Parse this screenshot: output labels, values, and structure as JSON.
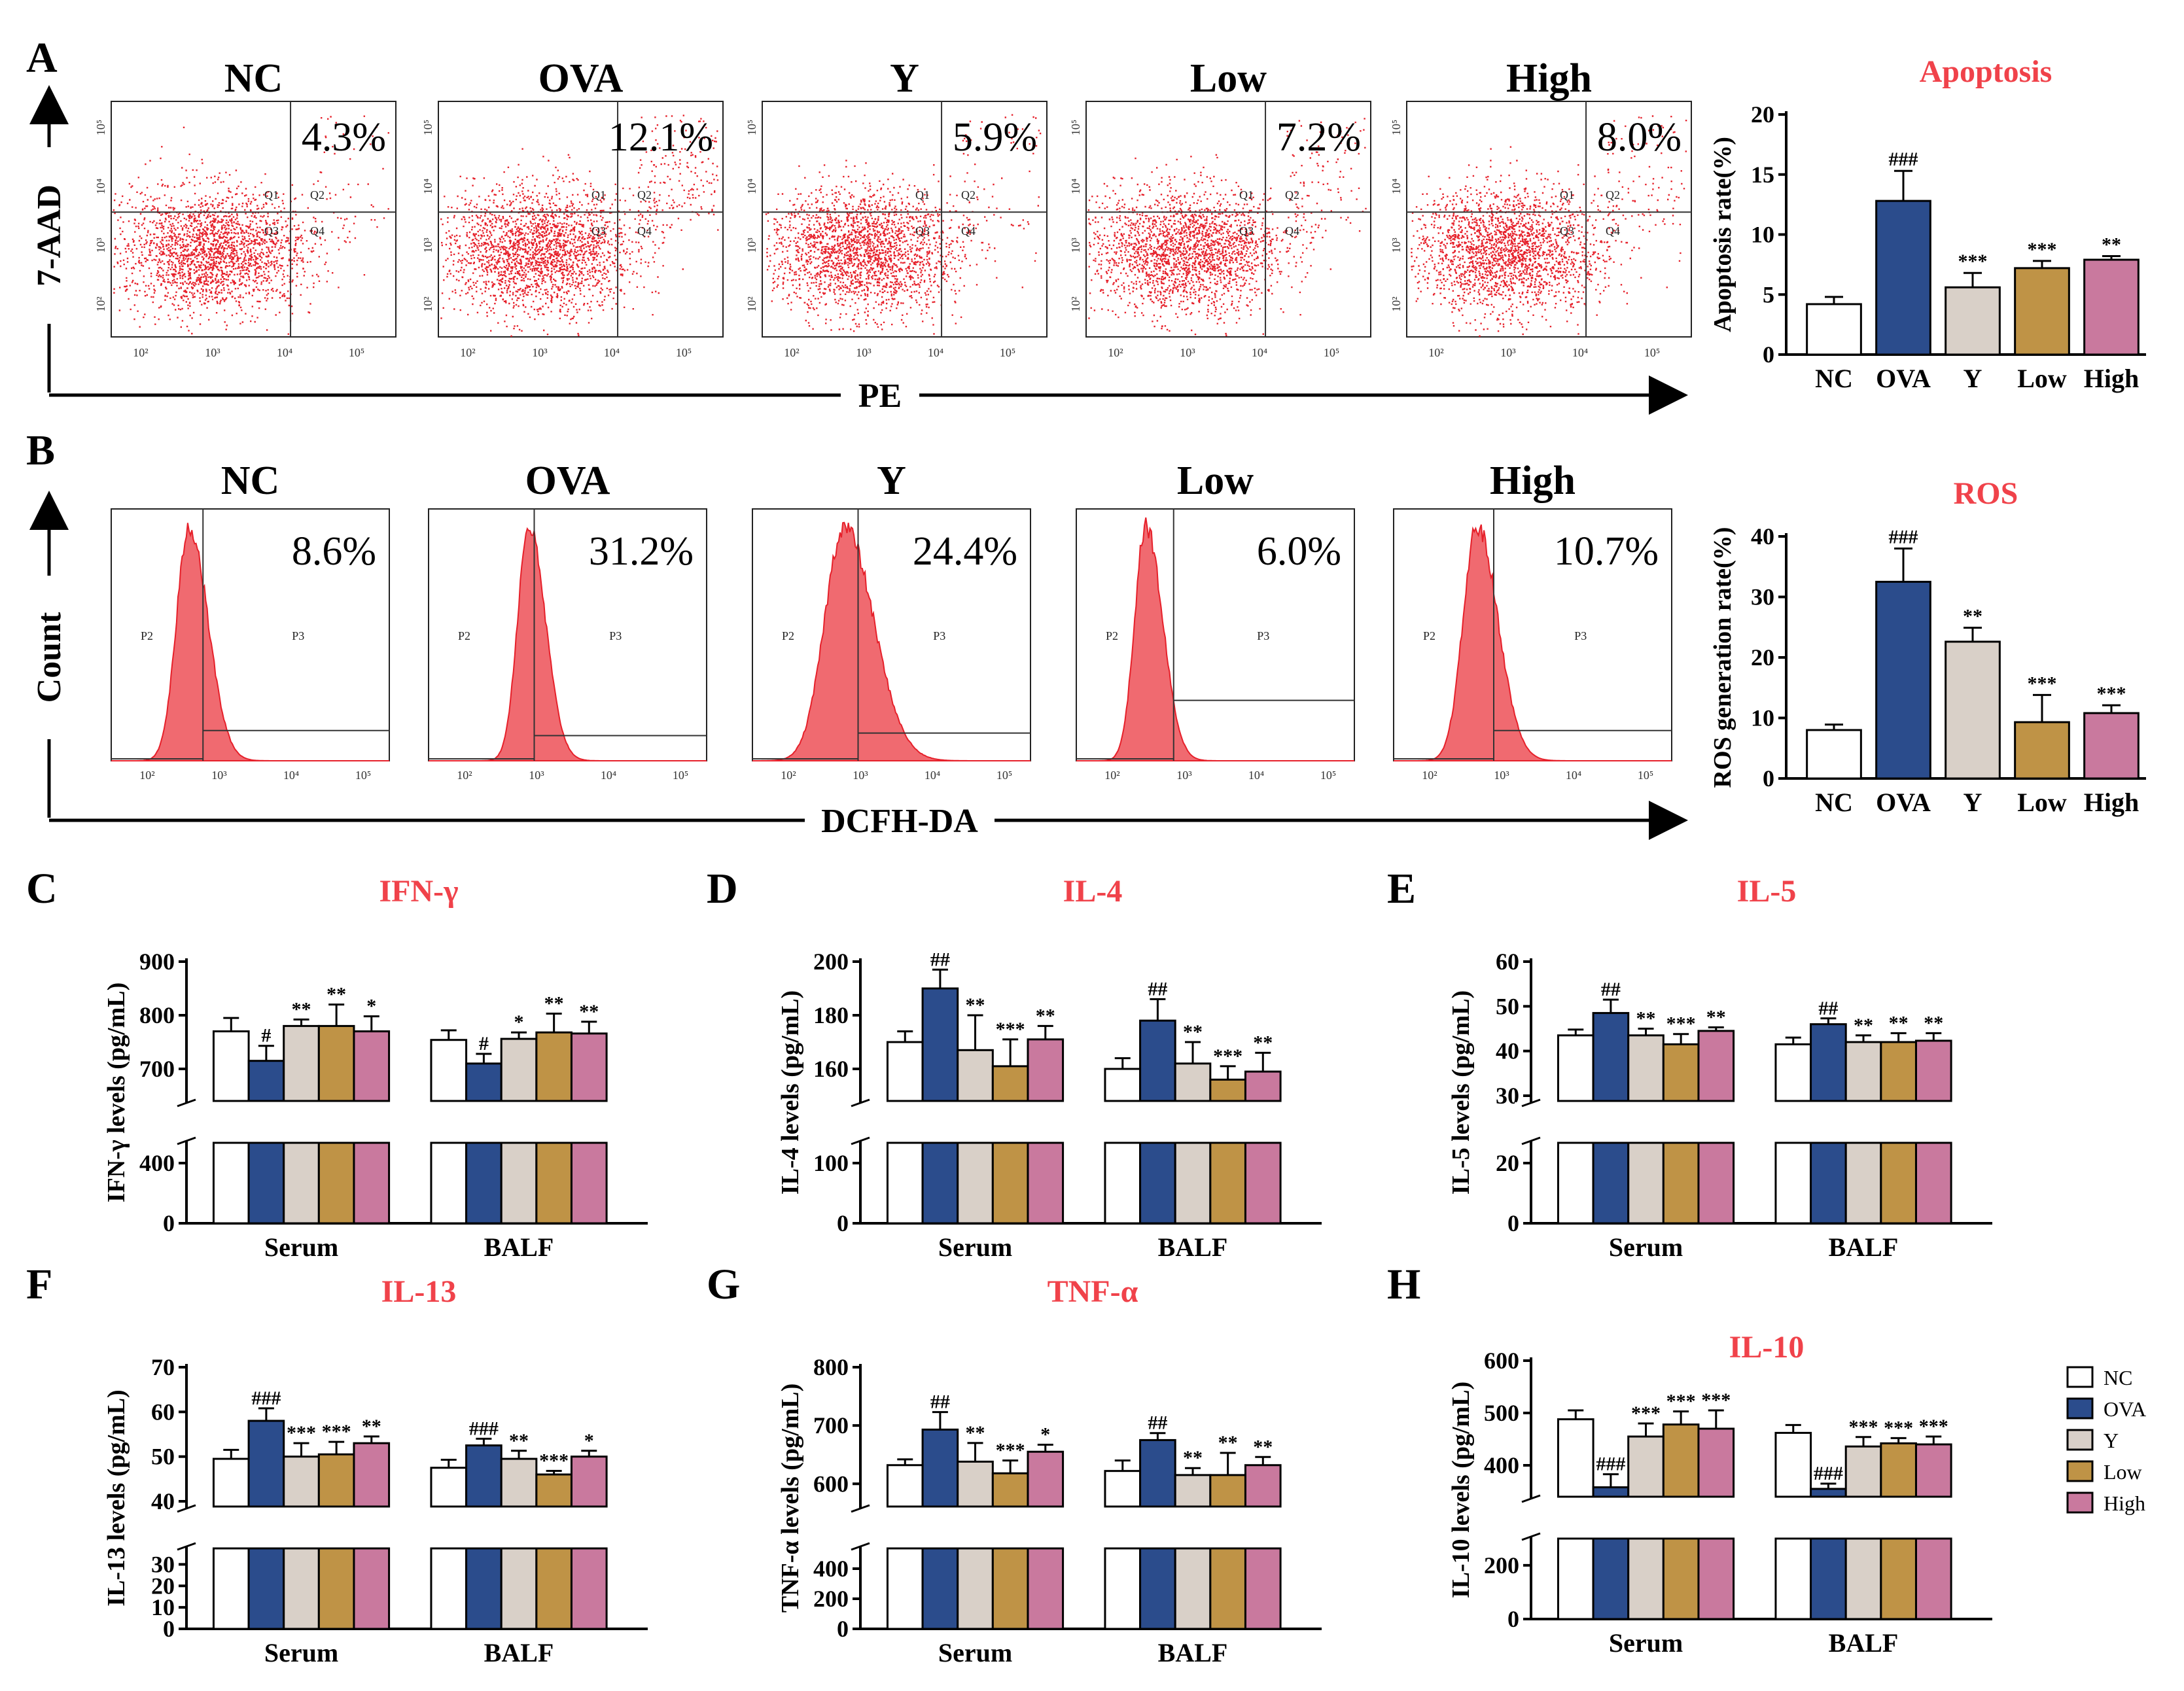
{
  "panel_labels": [
    "A",
    "B",
    "C",
    "D",
    "E",
    "F",
    "G",
    "H"
  ],
  "colors": {
    "NC": "#ffffff",
    "OVA": "#2b4c8c",
    "Y": "#d9d0c8",
    "Low": "#bf9346",
    "High": "#c9799e",
    "title": "#f0424a",
    "flow": "#e6202a"
  },
  "flow_A": {
    "x_axis_label": "PE",
    "y_axis_label": "7-AAD",
    "quadrant_labels": [
      "Q1",
      "Q2",
      "Q3",
      "Q4"
    ],
    "tick_labels": [
      "10²",
      "10³",
      "10⁴",
      "10⁵"
    ],
    "groups": [
      {
        "name": "NC",
        "percent": "4.3%"
      },
      {
        "name": "OVA",
        "percent": "12.1%"
      },
      {
        "name": "Y",
        "percent": "5.9%"
      },
      {
        "name": "Low",
        "percent": "7.2%"
      },
      {
        "name": "High",
        "percent": "8.0%"
      }
    ]
  },
  "flow_B": {
    "x_axis_label": "DCFH-DA",
    "y_axis_label": "Count",
    "gate_labels": [
      "P2",
      "P3"
    ],
    "tick_labels": [
      "10²",
      "10³",
      "10⁴",
      "10⁵"
    ],
    "groups": [
      {
        "name": "NC",
        "percent": "8.6%"
      },
      {
        "name": "OVA",
        "percent": "31.2%"
      },
      {
        "name": "Y",
        "percent": "24.4%"
      },
      {
        "name": "Low",
        "percent": "6.0%"
      },
      {
        "name": "High",
        "percent": "10.7%"
      }
    ]
  },
  "legend": [
    "NC",
    "OVA",
    "Y",
    "Low",
    "High"
  ],
  "chart_data": [
    {
      "id": "A_bar",
      "type": "bar",
      "title": "Apoptosis",
      "ylabel": "Apoptosis rate(%)",
      "ylim": [
        0,
        20
      ],
      "yticks": [
        0,
        5,
        10,
        15,
        20
      ],
      "categories": [
        "NC",
        "OVA",
        "Y",
        "Low",
        "High"
      ],
      "values": [
        4.2,
        12.8,
        5.6,
        7.2,
        7.9
      ],
      "errors": [
        0.6,
        2.5,
        1.2,
        0.6,
        0.3
      ],
      "significance": [
        "",
        "###",
        "***",
        "***",
        "**"
      ]
    },
    {
      "id": "B_bar",
      "type": "bar",
      "title": "ROS",
      "ylabel": "ROS generation rate(%)",
      "ylim": [
        0,
        40
      ],
      "yticks": [
        0,
        10,
        20,
        30,
        40
      ],
      "categories": [
        "NC",
        "OVA",
        "Y",
        "Low",
        "High"
      ],
      "values": [
        8.0,
        32.5,
        22.6,
        9.3,
        10.8
      ],
      "errors": [
        0.9,
        5.5,
        2.3,
        4.5,
        1.3
      ],
      "significance": [
        "",
        "###",
        "**",
        "***",
        "***"
      ]
    },
    {
      "id": "C",
      "type": "bar",
      "title": "IFN-γ",
      "ylabel": "IFN-γ levels (pg/mL)",
      "yticks_upper": [
        700,
        800,
        900
      ],
      "yticks_lower": [
        0,
        400
      ],
      "upper_range": [
        650,
        900
      ],
      "lower_range": [
        0,
        500
      ],
      "categories": [
        "Serum",
        "BALF"
      ],
      "series": [
        {
          "name": "NC",
          "values": [
            770,
            754
          ],
          "errors": [
            25,
            18
          ],
          "significance": [
            "",
            ""
          ]
        },
        {
          "name": "OVA",
          "values": [
            715,
            710
          ],
          "errors": [
            28,
            18
          ],
          "significance": [
            "#",
            "#"
          ]
        },
        {
          "name": "Y",
          "values": [
            780,
            756
          ],
          "errors": [
            12,
            12
          ],
          "significance": [
            "**",
            "*"
          ]
        },
        {
          "name": "Low",
          "values": [
            780,
            768
          ],
          "errors": [
            40,
            35
          ],
          "significance": [
            "**",
            "**"
          ]
        },
        {
          "name": "High",
          "values": [
            770,
            766
          ],
          "errors": [
            28,
            22
          ],
          "significance": [
            "*",
            "**"
          ]
        }
      ]
    },
    {
      "id": "D",
      "type": "bar",
      "title": "IL-4",
      "ylabel": "IL-4 levels (pg/mL)",
      "yticks_upper": [
        160,
        180,
        200
      ],
      "yticks_lower": [
        0,
        100
      ],
      "upper_range": [
        150,
        200
      ],
      "lower_range": [
        0,
        125
      ],
      "categories": [
        "Serum",
        "BALF"
      ],
      "series": [
        {
          "name": "NC",
          "values": [
            170,
            160
          ],
          "errors": [
            4,
            4
          ],
          "significance": [
            "",
            ""
          ]
        },
        {
          "name": "OVA",
          "values": [
            190,
            178
          ],
          "errors": [
            7,
            8
          ],
          "significance": [
            "##",
            "##"
          ]
        },
        {
          "name": "Y",
          "values": [
            167,
            162
          ],
          "errors": [
            13,
            8
          ],
          "significance": [
            "**",
            "**"
          ]
        },
        {
          "name": "Low",
          "values": [
            161,
            156
          ],
          "errors": [
            10,
            5
          ],
          "significance": [
            "***",
            "***"
          ]
        },
        {
          "name": "High",
          "values": [
            171,
            159
          ],
          "errors": [
            5,
            7
          ],
          "significance": [
            "**",
            "**"
          ]
        }
      ]
    },
    {
      "id": "E",
      "type": "bar",
      "title": "IL-5",
      "ylabel": "IL-5 levels (pg/mL)",
      "yticks_upper": [
        30,
        40,
        50,
        60
      ],
      "yticks_lower": [
        0,
        20
      ],
      "upper_range": [
        30,
        60
      ],
      "lower_range": [
        0,
        25
      ],
      "categories": [
        "Serum",
        "BALF"
      ],
      "series": [
        {
          "name": "NC",
          "values": [
            43.5,
            41.5
          ],
          "errors": [
            1.3,
            1.5
          ],
          "significance": [
            "",
            ""
          ]
        },
        {
          "name": "OVA",
          "values": [
            48.5,
            46.0
          ],
          "errors": [
            3.0,
            1.3
          ],
          "significance": [
            "##",
            "##"
          ]
        },
        {
          "name": "Y",
          "values": [
            43.5,
            42.0
          ],
          "errors": [
            1.5,
            1.5
          ],
          "significance": [
            "**",
            "**"
          ]
        },
        {
          "name": "Low",
          "values": [
            41.5,
            42.0
          ],
          "errors": [
            2.3,
            2.0
          ],
          "significance": [
            "***",
            "**"
          ]
        },
        {
          "name": "High",
          "values": [
            44.5,
            42.3
          ],
          "errors": [
            0.8,
            1.7
          ],
          "significance": [
            "**",
            "**"
          ]
        }
      ]
    },
    {
      "id": "F",
      "type": "bar",
      "title": "IL-13",
      "ylabel": "IL-13 levels (pg/mL)",
      "yticks_upper": [
        40,
        50,
        60,
        70
      ],
      "yticks_lower": [
        0,
        10,
        20,
        30
      ],
      "upper_range": [
        40,
        70
      ],
      "lower_range": [
        0,
        35
      ],
      "categories": [
        "Serum",
        "BALF"
      ],
      "series": [
        {
          "name": "NC",
          "values": [
            49.5,
            47.5
          ],
          "errors": [
            2.0,
            1.8
          ],
          "significance": [
            "",
            ""
          ]
        },
        {
          "name": "OVA",
          "values": [
            58.0,
            52.5
          ],
          "errors": [
            2.8,
            1.5
          ],
          "significance": [
            "###",
            "###"
          ]
        },
        {
          "name": "Y",
          "values": [
            50.0,
            49.5
          ],
          "errors": [
            3.0,
            1.8
          ],
          "significance": [
            "***",
            "**"
          ]
        },
        {
          "name": "Low",
          "values": [
            50.5,
            46.0
          ],
          "errors": [
            2.8,
            0.8
          ],
          "significance": [
            "***",
            "***"
          ]
        },
        {
          "name": "High",
          "values": [
            53.0,
            50.0
          ],
          "errors": [
            1.5,
            1.3
          ],
          "significance": [
            "**",
            "*"
          ]
        }
      ]
    },
    {
      "id": "G",
      "type": "bar",
      "title": "TNF-α",
      "ylabel": "TNF-α levels (pg/mL)",
      "yticks_upper": [
        600,
        700,
        800
      ],
      "yticks_lower": [
        0,
        200,
        400
      ],
      "upper_range": [
        570,
        800
      ],
      "lower_range": [
        0,
        500
      ],
      "categories": [
        "Serum",
        "BALF"
      ],
      "series": [
        {
          "name": "NC",
          "values": [
            632,
            622
          ],
          "errors": [
            10,
            18
          ],
          "significance": [
            "",
            ""
          ]
        },
        {
          "name": "OVA",
          "values": [
            693,
            675
          ],
          "errors": [
            30,
            12
          ],
          "significance": [
            "##",
            "##"
          ]
        },
        {
          "name": "Y",
          "values": [
            638,
            615
          ],
          "errors": [
            32,
            12
          ],
          "significance": [
            "**",
            "**"
          ]
        },
        {
          "name": "Low",
          "values": [
            618,
            615
          ],
          "errors": [
            22,
            38
          ],
          "significance": [
            "***",
            "**"
          ]
        },
        {
          "name": "High",
          "values": [
            655,
            632
          ],
          "errors": [
            12,
            14
          ],
          "significance": [
            "*",
            "**"
          ]
        }
      ]
    },
    {
      "id": "H",
      "type": "bar",
      "title": "IL-10",
      "ylabel": "IL-10 levels (pg/mL)",
      "yticks_upper": [
        400,
        500,
        600
      ],
      "yticks_lower": [
        0,
        200
      ],
      "upper_range": [
        350,
        600
      ],
      "lower_range": [
        0,
        280
      ],
      "categories": [
        "Serum",
        "BALF"
      ],
      "series": [
        {
          "name": "NC",
          "values": [
            488,
            462
          ],
          "errors": [
            17,
            15
          ],
          "significance": [
            "",
            ""
          ]
        },
        {
          "name": "OVA",
          "values": [
            358,
            355
          ],
          "errors": [
            25,
            10
          ],
          "significance": [
            "###",
            "###"
          ]
        },
        {
          "name": "Y",
          "values": [
            455,
            436
          ],
          "errors": [
            25,
            18
          ],
          "significance": [
            "***",
            "***"
          ]
        },
        {
          "name": "Low",
          "values": [
            478,
            442
          ],
          "errors": [
            25,
            10
          ],
          "significance": [
            "***",
            "***"
          ]
        },
        {
          "name": "High",
          "values": [
            470,
            440
          ],
          "errors": [
            35,
            15
          ],
          "significance": [
            "***",
            "***"
          ]
        }
      ]
    }
  ]
}
